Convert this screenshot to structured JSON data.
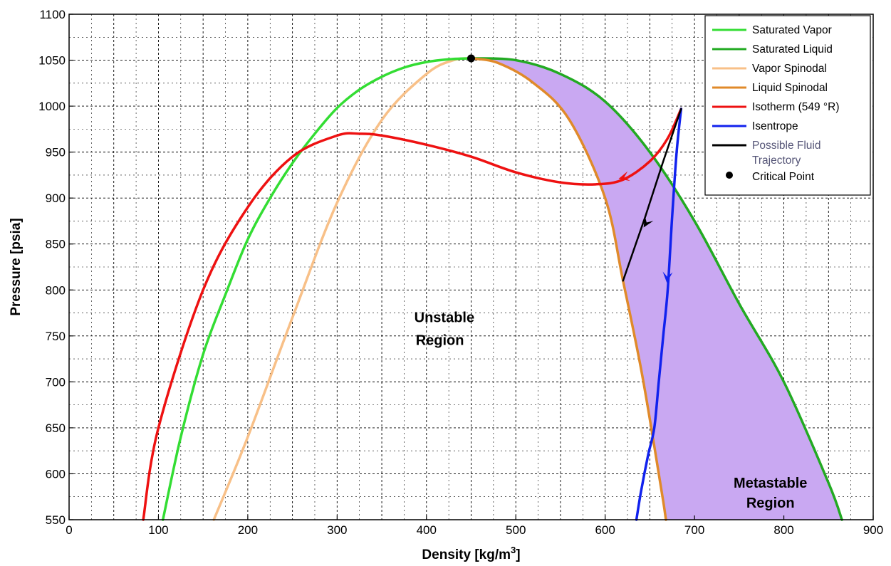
{
  "chart_data": {
    "type": "line",
    "xlabel": "Density [kg/m",
    "xlabel_sup": "3",
    "xlabel_tail": "]",
    "ylabel": "Pressure [psia]",
    "xlim": [
      0,
      900
    ],
    "ylim": [
      550,
      1100
    ],
    "x_ticks": [
      0,
      100,
      200,
      300,
      400,
      500,
      600,
      700,
      800,
      900
    ],
    "y_ticks": [
      550,
      600,
      650,
      700,
      750,
      800,
      850,
      900,
      950,
      1000,
      1050,
      1100
    ],
    "grid": true,
    "legend_position": "top-right",
    "colors": {
      "saturated_vapor": "#33dd33",
      "saturated_liquid": "#22aa22",
      "vapor_spinodal": "#f8c088",
      "liquid_spinodal": "#e08a2a",
      "isotherm": "#ee1111",
      "isentrope": "#1122ee",
      "trajectory": "#000000",
      "critical_point": "#000000",
      "metastable_fill": "#c9a8f2"
    },
    "series": [
      {
        "key": "saturated_vapor",
        "name": "Saturated Vapor",
        "x": [
          105,
          125,
          150,
          175,
          200,
          225,
          250,
          275,
          300,
          325,
          350,
          375,
          400,
          425,
          450
        ],
        "y": [
          550,
          640,
          730,
          795,
          855,
          900,
          938,
          970,
          998,
          1018,
          1032,
          1042,
          1048,
          1051,
          1052
        ]
      },
      {
        "key": "saturated_liquid",
        "name": "Saturated Liquid",
        "x": [
          450,
          500,
          550,
          600,
          650,
          700,
          750,
          800,
          850,
          865
        ],
        "y": [
          1052,
          1050,
          1035,
          1005,
          950,
          875,
          785,
          700,
          590,
          550
        ]
      },
      {
        "key": "vapor_spinodal",
        "name": "Vapor Spinodal",
        "x": [
          162,
          200,
          250,
          300,
          350,
          400,
          430,
          450
        ],
        "y": [
          550,
          640,
          770,
          895,
          985,
          1035,
          1050,
          1052
        ]
      },
      {
        "key": "liquid_spinodal",
        "name": "Liquid Spinodal",
        "x": [
          450,
          480,
          520,
          560,
          600,
          620,
          640,
          655,
          665,
          668
        ],
        "y": [
          1052,
          1047,
          1025,
          985,
          900,
          810,
          715,
          630,
          570,
          550
        ]
      },
      {
        "key": "isotherm",
        "name": "Isotherm (549 °R)",
        "x": [
          83,
          100,
          150,
          200,
          250,
          300,
          325,
          350,
          400,
          450,
          500,
          550,
          590,
          620,
          650,
          670,
          685
        ],
        "y": [
          550,
          650,
          800,
          890,
          945,
          968,
          970,
          968,
          958,
          945,
          928,
          917,
          915,
          920,
          940,
          965,
          997
        ]
      },
      {
        "key": "isentrope",
        "name": "Isentrope",
        "x": [
          685,
          680,
          675,
          670,
          665,
          660,
          655,
          648,
          640,
          635
        ],
        "y": [
          997,
          950,
          880,
          800,
          750,
          700,
          650,
          620,
          580,
          550
        ]
      },
      {
        "key": "trajectory",
        "name": "Possible Fluid Trajectory",
        "x": [
          685,
          665,
          645,
          620
        ],
        "y": [
          997,
          940,
          880,
          810
        ]
      }
    ],
    "critical_point": {
      "name": "Critical Point",
      "x": 450,
      "y": 1052
    },
    "annotations": [
      {
        "text": "Unstable",
        "x": 420,
        "y": 765
      },
      {
        "text": "Region",
        "x": 415,
        "y": 740
      },
      {
        "text": "Metastable",
        "x": 785,
        "y": 585
      },
      {
        "text": "Region",
        "x": 785,
        "y": 563
      }
    ]
  }
}
